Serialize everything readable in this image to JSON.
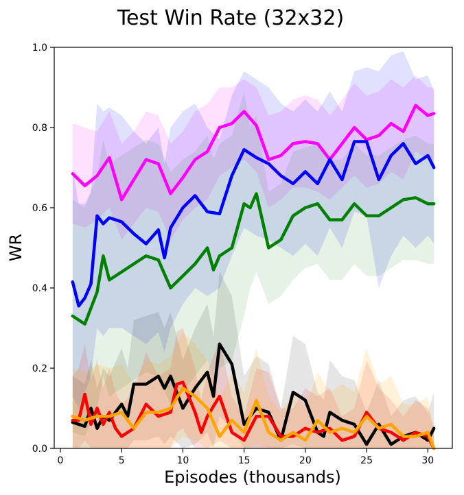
{
  "chart_data": {
    "type": "line",
    "title": "Test Win Rate (32x32)",
    "xlabel": "Episodes (thousands)",
    "ylabel": "WR",
    "xlim": [
      -0.5,
      32
    ],
    "ylim": [
      0,
      1
    ],
    "xticks": [
      "0",
      "5",
      "10",
      "15",
      "20",
      "25",
      "30"
    ],
    "xtick_values": [
      0,
      5,
      10,
      15,
      20,
      25,
      30
    ],
    "yticks": [
      "0.0",
      "0.2",
      "0.4",
      "0.6",
      "0.8",
      "1.0"
    ],
    "ytick_values": [
      0,
      0.2,
      0.4,
      0.6,
      0.8,
      1.0
    ],
    "series": [
      {
        "name": "magenta",
        "color": "#ff00ff",
        "band_opacity": 0.12,
        "x": [
          1,
          2,
          3,
          4,
          5,
          6,
          7,
          8,
          9,
          10,
          11,
          12,
          13,
          14,
          15,
          16,
          17,
          18,
          19,
          20,
          21,
          22,
          23,
          24,
          25,
          26,
          27,
          28,
          29,
          30,
          30.5
        ],
        "y": [
          0.685,
          0.655,
          0.68,
          0.725,
          0.62,
          0.67,
          0.72,
          0.71,
          0.635,
          0.675,
          0.72,
          0.74,
          0.8,
          0.81,
          0.84,
          0.805,
          0.72,
          0.73,
          0.76,
          0.765,
          0.76,
          0.72,
          0.76,
          0.8,
          0.77,
          0.78,
          0.81,
          0.79,
          0.855,
          0.83,
          0.835
        ],
        "lower": [
          0.56,
          0.55,
          0.57,
          0.6,
          0.52,
          0.56,
          0.6,
          0.59,
          0.52,
          0.57,
          0.6,
          0.62,
          0.68,
          0.7,
          0.72,
          0.69,
          0.6,
          0.62,
          0.65,
          0.65,
          0.64,
          0.62,
          0.65,
          0.68,
          0.65,
          0.66,
          0.69,
          0.67,
          0.74,
          0.72,
          0.72
        ],
        "upper": [
          0.81,
          0.8,
          0.79,
          0.84,
          0.76,
          0.79,
          0.84,
          0.83,
          0.76,
          0.79,
          0.84,
          0.86,
          0.9,
          0.9,
          0.92,
          0.9,
          0.83,
          0.84,
          0.87,
          0.88,
          0.87,
          0.83,
          0.87,
          0.91,
          0.88,
          0.89,
          0.92,
          0.9,
          0.93,
          0.9,
          0.9
        ]
      },
      {
        "name": "blue",
        "color": "#0000ff",
        "band_opacity": 0.12,
        "x": [
          1,
          1.5,
          2,
          2.5,
          3,
          3.5,
          4,
          5,
          6,
          7,
          8,
          8.5,
          9,
          10,
          11,
          12,
          13,
          14,
          15,
          16,
          17,
          18,
          19,
          20,
          21,
          22,
          23,
          24,
          25,
          26,
          27,
          28,
          29,
          30,
          30.5
        ],
        "y": [
          0.415,
          0.355,
          0.375,
          0.41,
          0.58,
          0.56,
          0.575,
          0.565,
          0.535,
          0.51,
          0.545,
          0.475,
          0.55,
          0.6,
          0.63,
          0.59,
          0.585,
          0.68,
          0.745,
          0.725,
          0.71,
          0.68,
          0.66,
          0.69,
          0.66,
          0.72,
          0.67,
          0.765,
          0.765,
          0.67,
          0.73,
          0.76,
          0.71,
          0.73,
          0.7
        ],
        "lower": [
          0.13,
          0.1,
          0.14,
          0.18,
          0.3,
          0.28,
          0.3,
          0.3,
          0.28,
          0.26,
          0.29,
          0.24,
          0.3,
          0.36,
          0.4,
          0.38,
          0.4,
          0.48,
          0.55,
          0.53,
          0.52,
          0.5,
          0.48,
          0.51,
          0.48,
          0.55,
          0.5,
          0.59,
          0.58,
          0.4,
          0.48,
          0.53,
          0.5,
          0.53,
          0.51
        ],
        "upper": [
          0.7,
          0.61,
          0.61,
          0.64,
          0.86,
          0.84,
          0.85,
          0.83,
          0.79,
          0.76,
          0.8,
          0.71,
          0.8,
          0.84,
          0.86,
          0.8,
          0.77,
          0.88,
          0.94,
          0.92,
          0.9,
          0.86,
          0.84,
          0.87,
          0.84,
          0.89,
          0.84,
          0.94,
          0.95,
          0.94,
          0.98,
          0.99,
          0.92,
          0.93,
          0.89
        ]
      },
      {
        "name": "green",
        "color": "#008000",
        "band_opacity": 0.1,
        "x": [
          1,
          2,
          3,
          3.5,
          4,
          5,
          6,
          7,
          8,
          9,
          10,
          11,
          12,
          12.5,
          13,
          14,
          15,
          15.5,
          16,
          17,
          18,
          19,
          20,
          21,
          22,
          23,
          24,
          25,
          26,
          27,
          28,
          29,
          30,
          30.5
        ],
        "y": [
          0.33,
          0.31,
          0.39,
          0.48,
          0.42,
          0.44,
          0.46,
          0.48,
          0.47,
          0.4,
          0.43,
          0.46,
          0.5,
          0.445,
          0.48,
          0.5,
          0.61,
          0.6,
          0.635,
          0.5,
          0.52,
          0.58,
          0.6,
          0.61,
          0.57,
          0.57,
          0.61,
          0.58,
          0.58,
          0.6,
          0.62,
          0.625,
          0.61,
          0.61
        ],
        "lower": [
          0.04,
          0.03,
          0.1,
          0.18,
          0.13,
          0.15,
          0.17,
          0.19,
          0.18,
          0.11,
          0.14,
          0.18,
          0.22,
          0.17,
          0.2,
          0.22,
          0.33,
          0.4,
          0.44,
          0.36,
          0.38,
          0.42,
          0.45,
          0.46,
          0.42,
          0.42,
          0.46,
          0.43,
          0.43,
          0.45,
          0.47,
          0.47,
          0.46,
          0.46
        ],
        "upper": [
          0.62,
          0.6,
          0.68,
          0.77,
          0.71,
          0.73,
          0.75,
          0.77,
          0.76,
          0.69,
          0.72,
          0.74,
          0.78,
          0.72,
          0.76,
          0.78,
          0.89,
          0.8,
          0.83,
          0.64,
          0.66,
          0.74,
          0.75,
          0.76,
          0.72,
          0.72,
          0.76,
          0.73,
          0.73,
          0.75,
          0.77,
          0.78,
          0.76,
          0.76
        ]
      },
      {
        "name": "black",
        "color": "#000000",
        "band_opacity": 0.1,
        "x": [
          1,
          2,
          2.5,
          3,
          3.5,
          4,
          5,
          5.5,
          6,
          7,
          8,
          8.5,
          9,
          10,
          11,
          12,
          12.5,
          13,
          14,
          15,
          16,
          17,
          18,
          19,
          20,
          21,
          21.5,
          22,
          23,
          24,
          25,
          26,
          27,
          28,
          29,
          30,
          30.5
        ],
        "y": [
          0.065,
          0.055,
          0.1,
          0.05,
          0.08,
          0.07,
          0.11,
          0.08,
          0.16,
          0.16,
          0.18,
          0.15,
          0.18,
          0.1,
          0.15,
          0.19,
          0.13,
          0.26,
          0.21,
          0.06,
          0.1,
          0.09,
          0.02,
          0.14,
          0.12,
          0.04,
          0.03,
          0.09,
          0.07,
          0.06,
          0.01,
          0.06,
          0.01,
          0.03,
          0.04,
          0.02,
          0.05
        ],
        "lower": [
          0.0,
          0.0,
          0.0,
          0.0,
          0.0,
          0.0,
          0.0,
          0.0,
          0.02,
          0.02,
          0.03,
          0.01,
          0.03,
          0.0,
          0.01,
          0.04,
          0.0,
          0.08,
          0.05,
          0.0,
          0.0,
          0.0,
          0.0,
          0.01,
          0.0,
          0.0,
          0.0,
          0.0,
          0.0,
          0.0,
          0.0,
          0.0,
          0.0,
          0.0,
          0.0,
          0.0,
          0.0
        ],
        "upper": [
          0.18,
          0.16,
          0.22,
          0.15,
          0.2,
          0.18,
          0.25,
          0.2,
          0.32,
          0.33,
          0.34,
          0.3,
          0.34,
          0.22,
          0.3,
          0.36,
          0.28,
          0.44,
          0.38,
          0.18,
          0.23,
          0.21,
          0.1,
          0.28,
          0.26,
          0.14,
          0.12,
          0.22,
          0.18,
          0.17,
          0.09,
          0.17,
          0.08,
          0.12,
          0.13,
          0.09,
          0.14
        ]
      },
      {
        "name": "red",
        "color": "#ff0000",
        "band_opacity": 0.12,
        "x": [
          1,
          1.5,
          2,
          2.5,
          3,
          3.5,
          4,
          4.5,
          5,
          6,
          7,
          8,
          9,
          9.5,
          10,
          11,
          11.5,
          12,
          13,
          14,
          15,
          15.5,
          16,
          17,
          18,
          19,
          20,
          21,
          22,
          23,
          24,
          25,
          26,
          27,
          28,
          29,
          30,
          30.5
        ],
        "y": [
          0.07,
          0.07,
          0.135,
          0.06,
          0.1,
          0.06,
          0.09,
          0.05,
          0.03,
          0.05,
          0.11,
          0.08,
          0.09,
          0.16,
          0.165,
          0.09,
          0.04,
          0.08,
          0.13,
          0.04,
          0.02,
          0.05,
          0.08,
          0.08,
          0.03,
          0.03,
          0.05,
          0.04,
          0.05,
          0.02,
          0.03,
          0.09,
          0.05,
          0.04,
          0.02,
          0.04,
          0.03,
          0.0
        ],
        "lower": [
          0.0,
          0.0,
          0.02,
          0.0,
          0.0,
          0.0,
          0.0,
          0.0,
          0.0,
          0.0,
          0.0,
          0.0,
          0.0,
          0.04,
          0.05,
          0.0,
          0.0,
          0.0,
          0.02,
          0.0,
          0.0,
          0.0,
          0.0,
          0.0,
          0.0,
          0.0,
          0.0,
          0.0,
          0.0,
          0.0,
          0.0,
          0.0,
          0.0,
          0.0,
          0.0,
          0.0,
          0.0,
          0.0
        ],
        "upper": [
          0.18,
          0.2,
          0.26,
          0.17,
          0.22,
          0.15,
          0.2,
          0.14,
          0.11,
          0.14,
          0.24,
          0.18,
          0.2,
          0.29,
          0.3,
          0.2,
          0.12,
          0.19,
          0.27,
          0.13,
          0.08,
          0.14,
          0.2,
          0.19,
          0.1,
          0.1,
          0.15,
          0.13,
          0.15,
          0.08,
          0.1,
          0.22,
          0.15,
          0.12,
          0.08,
          0.12,
          0.1,
          0.05
        ]
      },
      {
        "name": "orange",
        "color": "#ffa500",
        "band_opacity": 0.15,
        "x": [
          1,
          2,
          3,
          4,
          5,
          6,
          7,
          8,
          9,
          10,
          11,
          12,
          13,
          14,
          15,
          16,
          17,
          18,
          19,
          20,
          21,
          22,
          23,
          24,
          25,
          26,
          27,
          28,
          29,
          30,
          30.5
        ],
        "y": [
          0.08,
          0.07,
          0.08,
          0.08,
          0.09,
          0.05,
          0.09,
          0.09,
          0.1,
          0.15,
          0.13,
          0.1,
          0.03,
          0.07,
          0.04,
          0.12,
          0.04,
          0.02,
          0.04,
          0.02,
          0.07,
          0.04,
          0.05,
          0.04,
          0.08,
          0.05,
          0.06,
          0.03,
          0.03,
          0.04,
          0.0
        ],
        "lower": [
          0.0,
          0.0,
          0.0,
          0.0,
          0.0,
          0.0,
          0.0,
          0.0,
          0.0,
          0.03,
          0.02,
          0.0,
          0.0,
          0.0,
          0.0,
          0.01,
          0.0,
          0.0,
          0.0,
          0.0,
          0.0,
          0.0,
          0.0,
          0.0,
          0.0,
          0.0,
          0.0,
          0.0,
          0.0,
          0.0,
          0.0
        ],
        "upper": [
          0.2,
          0.19,
          0.21,
          0.2,
          0.21,
          0.16,
          0.22,
          0.21,
          0.23,
          0.29,
          0.26,
          0.22,
          0.12,
          0.19,
          0.14,
          0.25,
          0.13,
          0.09,
          0.14,
          0.1,
          0.19,
          0.14,
          0.16,
          0.14,
          0.25,
          0.16,
          0.18,
          0.11,
          0.11,
          0.13,
          0.05
        ]
      }
    ]
  }
}
